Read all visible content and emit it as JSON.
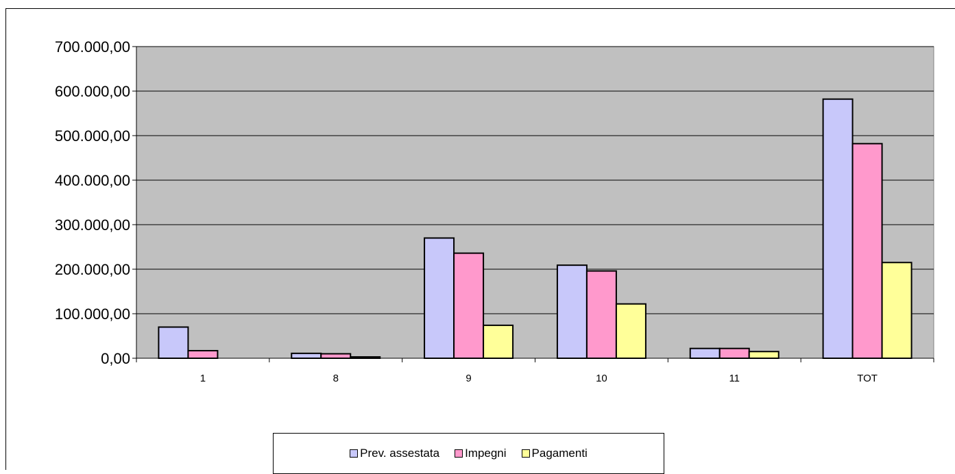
{
  "chart_data": {
    "type": "bar",
    "categories": [
      "1",
      "8",
      "9",
      "10",
      "11",
      "TOT"
    ],
    "series": [
      {
        "name": "Prev. assestata",
        "color": "#c8c8fa",
        "values": [
          70000,
          11000,
          270000,
          209000,
          22000,
          582000
        ]
      },
      {
        "name": "Impegni",
        "color": "#ff99cc",
        "values": [
          17000,
          10000,
          236000,
          196000,
          22000,
          482000
        ]
      },
      {
        "name": "Pagamenti",
        "color": "#ffff99",
        "values": [
          0,
          3000,
          74000,
          122000,
          15000,
          215000
        ]
      }
    ],
    "yticks": [
      "0,00",
      "100.000,00",
      "200.000,00",
      "300.000,00",
      "400.000,00",
      "500.000,00",
      "600.000,00",
      "700.000,00"
    ],
    "ylim": [
      0,
      700000
    ],
    "plot_background": "#c0c0c0",
    "grid": true,
    "legend_position": "bottom"
  }
}
